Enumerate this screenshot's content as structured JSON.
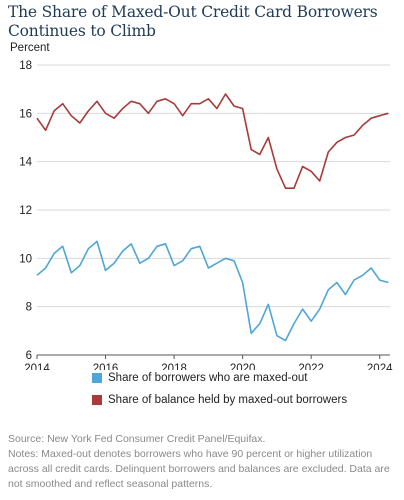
{
  "colors": {
    "series_1": "#4ea6d8",
    "series_2": "#a83a3a",
    "grid": "#d9d9d9",
    "title": "#1f3b57"
  },
  "footnote": {
    "source": "Source: New York Fed Consumer Credit Panel/Equifax.",
    "notes": "Notes: Maxed-out denotes borrowers who have 90 percent or higher utilization across all credit cards. Delinquent borrowers and balances are excluded. Data are not smoothed and reflect seasonal patterns."
  },
  "chart_data": {
    "type": "line",
    "title": "The Share of Maxed-Out Credit Card Borrowers Continues to Climb",
    "ylabel": "Percent",
    "xlabel": "",
    "xlim": [
      2014.0,
      2024.3
    ],
    "ylim": [
      6,
      18
    ],
    "x_ticks": [
      2014,
      2016,
      2018,
      2020,
      2022,
      2024
    ],
    "y_ticks": [
      6,
      8,
      10,
      12,
      14,
      16,
      18
    ],
    "grid": "horizontal",
    "legend_position": "bottom",
    "series": [
      {
        "name": "Share of borrowers who are maxed-out",
        "color": "#4ea6d8",
        "x": [
          2014.0,
          2014.25,
          2014.5,
          2014.75,
          2015.0,
          2015.25,
          2015.5,
          2015.75,
          2016.0,
          2016.25,
          2016.5,
          2016.75,
          2017.0,
          2017.25,
          2017.5,
          2017.75,
          2018.0,
          2018.25,
          2018.5,
          2018.75,
          2019.0,
          2019.25,
          2019.5,
          2019.75,
          2020.0,
          2020.25,
          2020.5,
          2020.75,
          2021.0,
          2021.25,
          2021.5,
          2021.75,
          2022.0,
          2022.25,
          2022.5,
          2022.75,
          2023.0,
          2023.25,
          2023.5,
          2023.75,
          2024.0,
          2024.25
        ],
        "y": [
          9.3,
          9.6,
          10.2,
          10.5,
          9.4,
          9.7,
          10.4,
          10.7,
          9.5,
          9.8,
          10.3,
          10.6,
          9.8,
          10.0,
          10.5,
          10.6,
          9.7,
          9.9,
          10.4,
          10.5,
          9.6,
          9.8,
          10.0,
          9.9,
          9.0,
          6.9,
          7.3,
          8.1,
          6.8,
          6.6,
          7.3,
          7.9,
          7.4,
          7.9,
          8.7,
          9.0,
          8.5,
          9.1,
          9.3,
          9.6,
          9.1,
          9.0
        ],
        "points_shown": 42
      },
      {
        "name": "Share of balance held by maxed-out borrowers",
        "color": "#a83a3a",
        "x": [
          2014.0,
          2014.25,
          2014.5,
          2014.75,
          2015.0,
          2015.25,
          2015.5,
          2015.75,
          2016.0,
          2016.25,
          2016.5,
          2016.75,
          2017.0,
          2017.25,
          2017.5,
          2017.75,
          2018.0,
          2018.25,
          2018.5,
          2018.75,
          2019.0,
          2019.25,
          2019.5,
          2019.75,
          2020.0,
          2020.25,
          2020.5,
          2020.75,
          2021.0,
          2021.25,
          2021.5,
          2021.75,
          2022.0,
          2022.25,
          2022.5,
          2022.75,
          2023.0,
          2023.25,
          2023.5,
          2023.75,
          2024.0,
          2024.25
        ],
        "y": [
          15.8,
          15.3,
          16.1,
          16.4,
          15.9,
          15.6,
          16.1,
          16.5,
          16.0,
          15.8,
          16.2,
          16.5,
          16.4,
          16.0,
          16.5,
          16.6,
          16.4,
          15.9,
          16.4,
          16.4,
          16.6,
          16.2,
          16.8,
          16.3,
          16.2,
          14.5,
          14.3,
          15.0,
          13.7,
          12.9,
          12.9,
          13.8,
          13.6,
          13.2,
          14.4,
          14.8,
          15.0,
          15.1,
          15.5,
          15.8,
          15.9,
          16.0
        ]
      }
    ]
  },
  "legend": {
    "items": [
      "Share of borrowers who are maxed-out",
      "Share of balance held by maxed-out borrowers"
    ]
  }
}
